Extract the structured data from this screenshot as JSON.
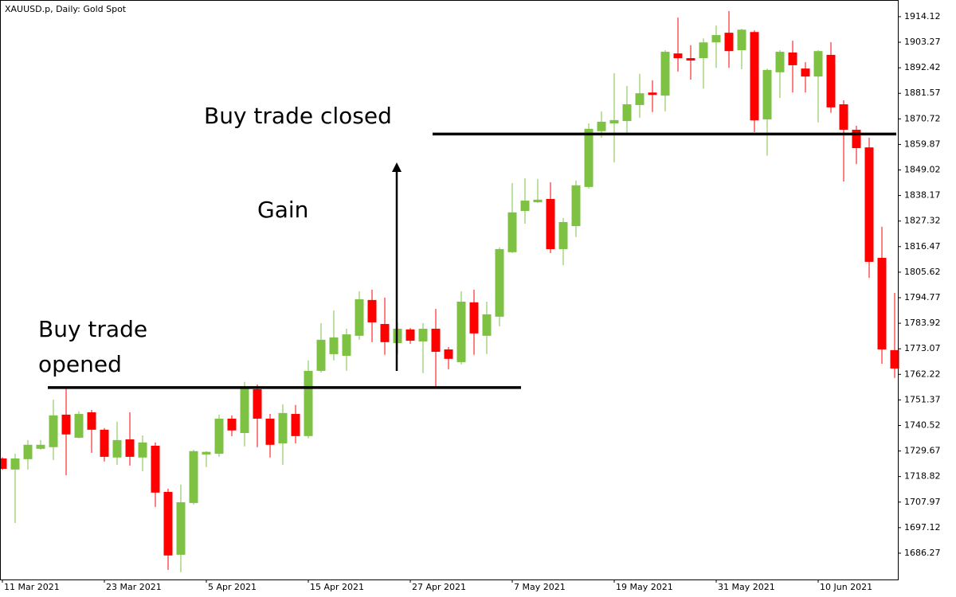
{
  "chart_data": {
    "type": "candlestick",
    "title": "XAUUSD.p, Daily:  Gold Spot",
    "categories": [
      "11 Mar 2021",
      null,
      null,
      null,
      null,
      null,
      null,
      null,
      "23 Mar 2021",
      null,
      null,
      null,
      null,
      null,
      null,
      null,
      "5 Apr 2021",
      null,
      null,
      null,
      null,
      null,
      null,
      null,
      "15 Apr 2021",
      null,
      null,
      null,
      null,
      null,
      null,
      null,
      "27 Apr 2021",
      null,
      null,
      null,
      null,
      null,
      null,
      null,
      "7 May 2021",
      null,
      null,
      null,
      null,
      null,
      null,
      null,
      "19 May 2021",
      null,
      null,
      null,
      null,
      null,
      null,
      null,
      "31 May 2021",
      null,
      null,
      null,
      null,
      null,
      null,
      null,
      "10 Jun 2021",
      null,
      null,
      null,
      null,
      null,
      null
    ],
    "open": [
      1726.5,
      1721.8,
      1726.2,
      1730.6,
      1731.3,
      1745.1,
      1735.3,
      1746.1,
      1738.7,
      1726.9,
      1734.6,
      1726.9,
      1731.9,
      1712.3,
      1685.6,
      1707.6,
      1728.2,
      1728.5,
      1743.4,
      1737.3,
      1755.9,
      1743.4,
      1732.9,
      1745.4,
      1736.0,
      1763.7,
      1770.8,
      1770.1,
      1778.6,
      1793.8,
      1783.6,
      1775.5,
      1781.3,
      1776.2,
      1781.6,
      1772.8,
      1767.4,
      1792.8,
      1778.6,
      1786.7,
      1814.1,
      1831.6,
      1835.3,
      1836.7,
      1815.4,
      1825.2,
      1841.8,
      1865.5,
      1868.8,
      1869.8,
      1876.6,
      1881.9,
      1880.6,
      1898.5,
      1896.5,
      1896.5,
      1903.2,
      1907.3,
      1899.9,
      1907.6,
      1870.5,
      1890.5,
      1898.9,
      1892.1,
      1888.7,
      1897.9,
      1876.9,
      1866.1,
      1858.6,
      1811.7,
      1772.5
    ],
    "high": [
      1727.0,
      1728.5,
      1734.3,
      1734.3,
      1751.5,
      1756.3,
      1746.5,
      1747.1,
      1739.4,
      1742.1,
      1746.1,
      1736.3,
      1733.3,
      1713.7,
      1715.4,
      1730.2,
      1729.6,
      1745.1,
      1744.8,
      1759.0,
      1757.9,
      1745.4,
      1749.5,
      1749.2,
      1768.1,
      1784.0,
      1789.4,
      1781.6,
      1797.5,
      1798.2,
      1794.8,
      1784.3,
      1781.9,
      1784.0,
      1790.0,
      1773.8,
      1797.5,
      1798.2,
      1793.1,
      1816.1,
      1843.5,
      1845.5,
      1845.2,
      1843.8,
      1828.6,
      1844.5,
      1868.8,
      1873.9,
      1890.1,
      1884.7,
      1889.8,
      1887.1,
      1899.9,
      1913.7,
      1902.0,
      1904.9,
      1910.4,
      1916.5,
      1909.0,
      1908.3,
      1892.1,
      1899.9,
      1903.9,
      1894.8,
      1899.9,
      1903.3,
      1878.6,
      1867.8,
      1862.7,
      1824.9,
      1796.8
    ],
    "low": [
      1721.7,
      1699.1,
      1721.8,
      1730.2,
      1725.8,
      1719.4,
      1735.0,
      1728.9,
      1725.2,
      1723.8,
      1723.5,
      1721.1,
      1705.9,
      1679.2,
      1678.2,
      1706.9,
      1722.8,
      1727.2,
      1736.0,
      1731.6,
      1731.3,
      1726.9,
      1723.8,
      1732.9,
      1735.0,
      1763.0,
      1768.1,
      1763.7,
      1776.9,
      1775.9,
      1770.5,
      1770.8,
      1775.2,
      1762.7,
      1756.9,
      1764.4,
      1766.4,
      1770.5,
      1770.8,
      1782.6,
      1813.7,
      1826.2,
      1835.0,
      1813.7,
      1808.6,
      1820.5,
      1841.1,
      1862.7,
      1852.2,
      1864.4,
      1871.2,
      1873.6,
      1873.9,
      1890.8,
      1887.4,
      1883.6,
      1892.4,
      1892.4,
      1891.8,
      1865.1,
      1855.1,
      1879.6,
      1881.9,
      1881.9,
      1869.2,
      1873.3,
      1844.1,
      1851.5,
      1803.2,
      1766.7,
      1760.7
    ],
    "close": [
      1722.1,
      1726.5,
      1732.3,
      1732.3,
      1744.8,
      1736.7,
      1745.4,
      1738.7,
      1727.2,
      1734.3,
      1727.2,
      1733.3,
      1712.0,
      1685.3,
      1707.9,
      1729.6,
      1729.3,
      1743.4,
      1738.4,
      1756.6,
      1743.4,
      1732.3,
      1745.8,
      1736.0,
      1763.7,
      1776.9,
      1777.9,
      1779.2,
      1794.1,
      1784.3,
      1775.9,
      1781.6,
      1776.5,
      1781.6,
      1771.8,
      1768.8,
      1793.1,
      1779.6,
      1787.7,
      1815.4,
      1831.0,
      1836.0,
      1836.4,
      1815.4,
      1826.9,
      1842.5,
      1866.5,
      1869.5,
      1870.2,
      1876.9,
      1881.6,
      1880.9,
      1899.2,
      1896.5,
      1895.5,
      1903.2,
      1906.3,
      1899.5,
      1908.6,
      1870.1,
      1891.5,
      1899.2,
      1893.5,
      1888.7,
      1899.5,
      1875.6,
      1866.1,
      1858.3,
      1810.0,
      1772.8,
      1764.7
    ],
    "up_color": "#7dc242",
    "down_color": "#ff0000",
    "ylim": [
      1675.1,
      1921.2
    ],
    "yticks": [
      1914.12,
      1903.27,
      1892.42,
      1881.57,
      1870.72,
      1859.87,
      1849.02,
      1838.17,
      1827.32,
      1816.47,
      1805.62,
      1794.77,
      1783.92,
      1773.07,
      1762.22,
      1751.37,
      1740.52,
      1729.67,
      1718.82,
      1707.97,
      1697.12,
      1686.27
    ],
    "levels": [
      {
        "label": [
          "Buy trade",
          "opened"
        ],
        "value": 1756.6
      },
      {
        "label": [
          "Buy trade closed"
        ],
        "value": 1864.3
      }
    ],
    "annotations": [
      "Gain"
    ]
  }
}
